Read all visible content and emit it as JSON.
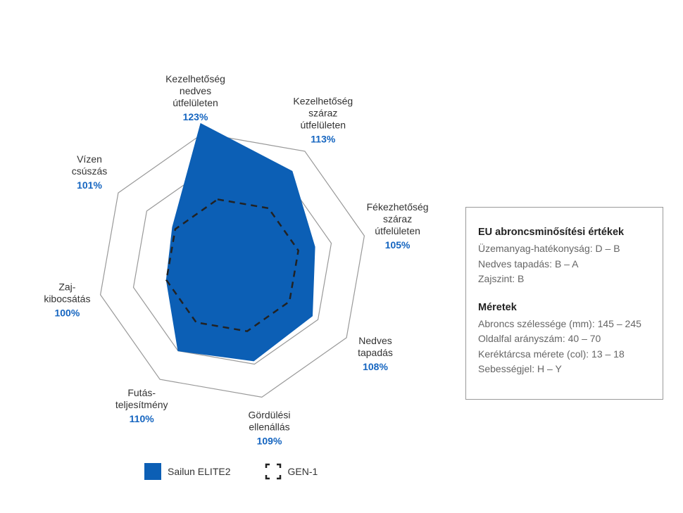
{
  "chart_data": {
    "type": "radar",
    "scale_min": 80,
    "axes": [
      {
        "label_lines": [
          "Kezelhetőség",
          "nedves",
          "útfelületen"
        ],
        "value_text": "123%",
        "value": 123
      },
      {
        "label_lines": [
          "Kezelhetőség",
          "száraz",
          "útfelületen"
        ],
        "value_text": "113%",
        "value": 113
      },
      {
        "label_lines": [
          "Fékezhetőség",
          "száraz",
          "útfelületen"
        ],
        "value_text": "105%",
        "value": 105
      },
      {
        "label_lines": [
          "Nedves",
          "tapadás"
        ],
        "value_text": "108%",
        "value": 108
      },
      {
        "label_lines": [
          "Gördülési",
          "ellenállás"
        ],
        "value_text": "109%",
        "value": 109
      },
      {
        "label_lines": [
          "Futás-",
          "teljesítmény"
        ],
        "value_text": "110%",
        "value": 110
      },
      {
        "label_lines": [
          "Zaj-",
          "kibocsátás"
        ],
        "value_text": "100%",
        "value": 100
      },
      {
        "label_lines": [
          "Vízen",
          "csúszás"
        ],
        "value_text": "101%",
        "value": 101
      }
    ],
    "grid_levels": [
      90,
      110,
      120
    ],
    "series": [
      {
        "name": "Sailun ELITE2",
        "style": "filled",
        "color": "#0c5fb5",
        "values": [
          123,
          113,
          105,
          108,
          109,
          110,
          100,
          101
        ]
      },
      {
        "name": "GEN-1",
        "style": "dashed",
        "color": "#222222",
        "values": [
          100,
          100,
          100,
          100,
          100,
          100,
          100,
          100
        ]
      }
    ]
  },
  "legend": {
    "series1_label": "Sailun ELITE2",
    "series2_label": "GEN-1"
  },
  "info": {
    "eu_title": "EU abroncsminősítési értékek",
    "eu_lines": [
      "Üzemanyag-hatékonyság: D – B",
      "Nedves tapadás: B – A",
      "Zajszint: B"
    ],
    "size_title": "Méretek",
    "size_lines": [
      "Abroncs szélessége (mm): 145 – 245",
      "Oldalfal arányszám: 40 – 70",
      "Keréktárcsa mérete (col): 13 – 18",
      "Sebességjel: H – Y"
    ]
  },
  "colors": {
    "accent": "#0c5fb5",
    "value_text": "#1565c0",
    "grid": "#999999"
  }
}
